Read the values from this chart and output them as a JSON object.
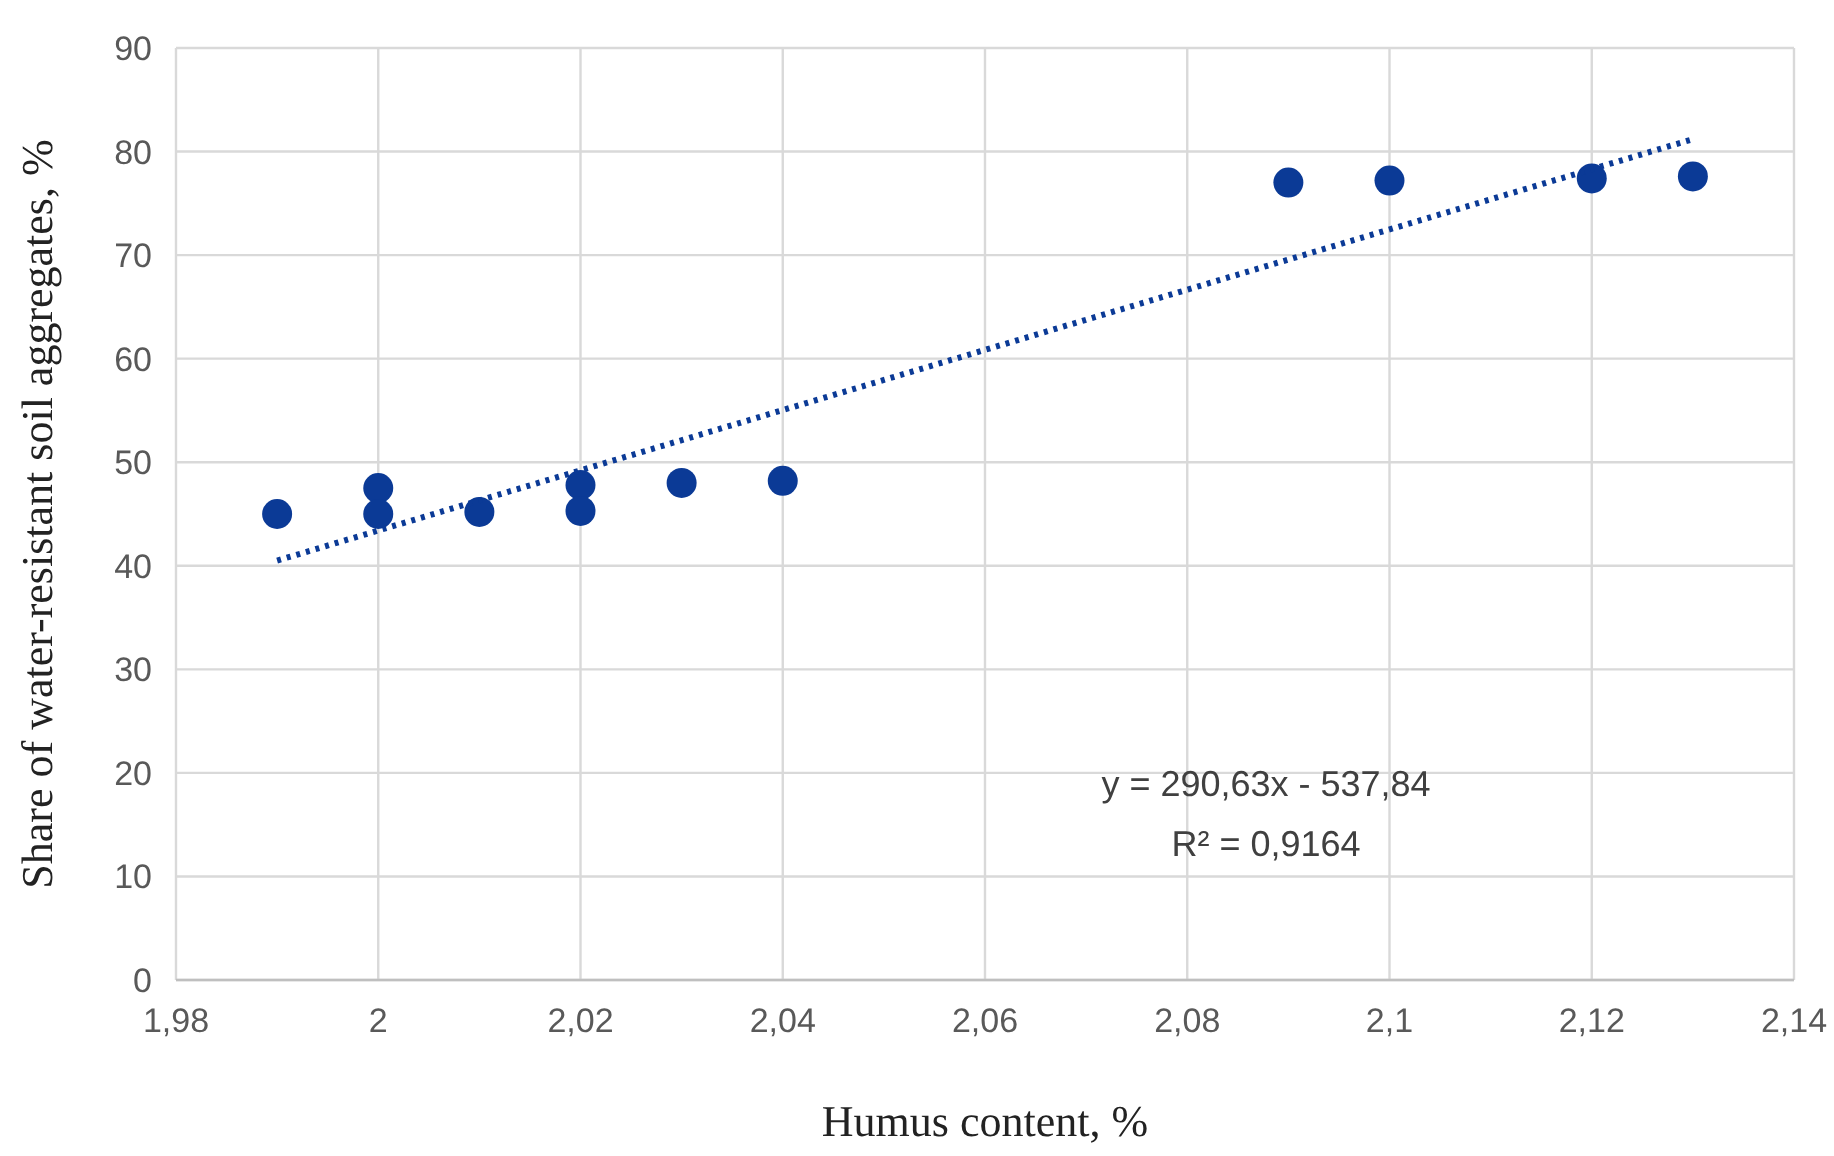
{
  "chart_data": {
    "type": "scatter",
    "xlabel": "Humus content, %",
    "ylabel": "Share of water-resistant soil aggregates, %",
    "series": [
      {
        "color": "#0b3a96",
        "marker": "circle",
        "x": [
          1.99,
          2.0,
          2.0,
          2.01,
          2.02,
          2.02,
          2.03,
          2.04,
          2.09,
          2.1,
          2.12,
          2.13
        ],
        "values": [
          45,
          47.5,
          45,
          45.2,
          47.8,
          45.3,
          48,
          48.2,
          77,
          77.2,
          77.4,
          77.6
        ]
      },
      {
        "type": "line",
        "color": "#0b3a96",
        "line_style": "dotted",
        "x": [
          1.99,
          2.13
        ],
        "values": [
          40.5,
          81.2
        ]
      }
    ],
    "xlim": [
      1.98,
      2.14
    ],
    "xticks": [
      {
        "value": 1.98,
        "label": "1,98"
      },
      2,
      {
        "value": 2.02,
        "label": "2,02"
      },
      {
        "value": 2.04,
        "label": "2,04"
      },
      {
        "value": 2.06,
        "label": "2,06"
      },
      {
        "value": 2.08,
        "label": "2,08"
      },
      {
        "value": 2.1,
        "label": "2,1"
      },
      {
        "value": 2.12,
        "label": "2,12"
      },
      {
        "value": 2.14,
        "label": "2,14"
      }
    ],
    "ylim": [
      0,
      90
    ],
    "yticks": [
      0,
      10,
      20,
      30,
      40,
      50,
      60,
      70,
      80,
      90
    ],
    "grid": true,
    "annotations": [
      "y = 290,63x - 537,84",
      "R² = 0,9164"
    ]
  }
}
